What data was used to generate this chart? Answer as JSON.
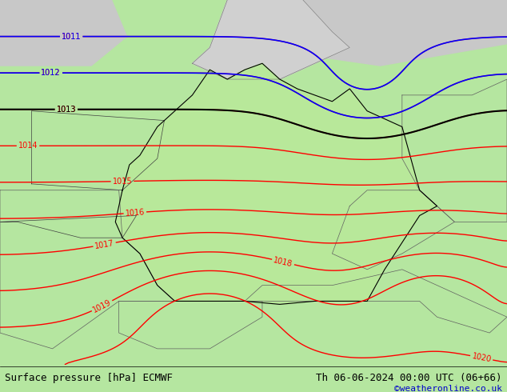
{
  "title_left": "Surface pressure [hPa] ECMWF",
  "title_right": "Th 06-06-2024 00:00 UTC (06+66)",
  "credit": "©weatheronline.co.uk",
  "bg_color": "#b5e6a0",
  "land_color": "#c8edb0",
  "sea_color": "#d0d0d0",
  "title_fontsize": 9,
  "credit_fontsize": 8,
  "credit_color": "#0000cc"
}
